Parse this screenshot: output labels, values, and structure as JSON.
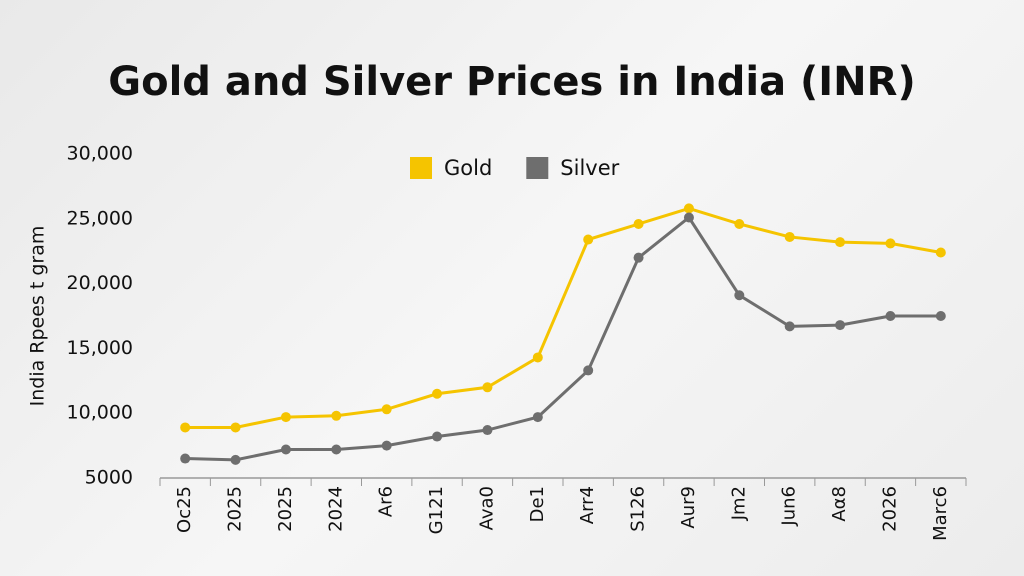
{
  "chart_data": {
    "type": "line",
    "title": "Gold and Silver Prices in India (INR)",
    "y_label": "India Rpees t gram",
    "categories": [
      "Oc25",
      "2025",
      "2025",
      "2024",
      "Ar6",
      "G121",
      "Ava0",
      "De1",
      "Arr4",
      "S126",
      "Aur9",
      "Jm2",
      "Jun6",
      "Aα8",
      "2026",
      "Marc6"
    ],
    "series": [
      {
        "name": "Gold",
        "color": "#f5c400",
        "values": [
          8900,
          8900,
          9700,
          9800,
          10300,
          11500,
          12000,
          14300,
          23400,
          24600,
          25800,
          24600,
          23600,
          23200,
          23100,
          22400
        ]
      },
      {
        "name": "Silver",
        "color": "#6e6e6e",
        "values": [
          6500,
          6400,
          7200,
          7200,
          7500,
          8200,
          8700,
          9700,
          13300,
          22000,
          25100,
          19100,
          16700,
          16800,
          17500,
          17500
        ]
      }
    ],
    "ylim": [
      5000,
      30000
    ],
    "yticks": [
      5000,
      {
        "value": 10000,
        "label": "10,000"
      },
      {
        "value": 15000,
        "label": "15,000"
      },
      {
        "value": 20000,
        "label": "20,000"
      },
      {
        "value": 25000,
        "label": "25,000"
      },
      {
        "value": 30000,
        "label": "30,000"
      }
    ],
    "grid": false,
    "legend": "top"
  }
}
